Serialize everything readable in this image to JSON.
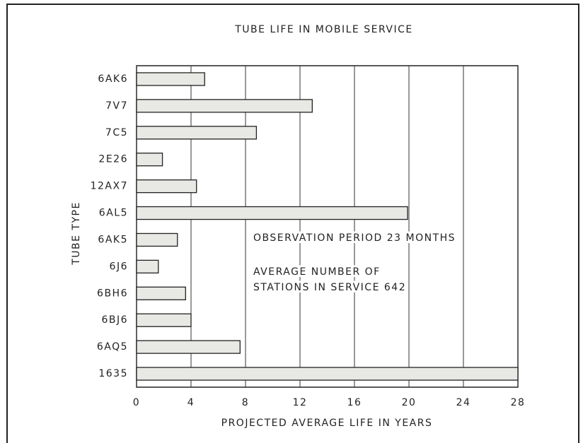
{
  "chart_data": {
    "type": "barh",
    "title": "TUBE LIFE IN MOBILE SERVICE",
    "xlabel": "PROJECTED AVERAGE LIFE IN YEARS",
    "ylabel": "TUBE TYPE",
    "categories": [
      "6AK6",
      "7V7",
      "7C5",
      "2E26",
      "12AX7",
      "6AL5",
      "6AK5",
      "6J6",
      "6BH6",
      "6BJ6",
      "6AQ5",
      "1635"
    ],
    "values": [
      5.0,
      12.9,
      8.8,
      1.9,
      4.4,
      19.9,
      3.0,
      1.6,
      3.6,
      4.0,
      7.6,
      28
    ],
    "color": "#e8e8e4",
    "xlim": [
      0,
      28
    ],
    "xticks": [
      0,
      4,
      8,
      12,
      16,
      20,
      24,
      28
    ],
    "grid": true,
    "annotations": [
      "OBSERVATION PERIOD 23 MONTHS",
      "AVERAGE NUMBER OF",
      "STATIONS IN SERVICE 642"
    ]
  }
}
